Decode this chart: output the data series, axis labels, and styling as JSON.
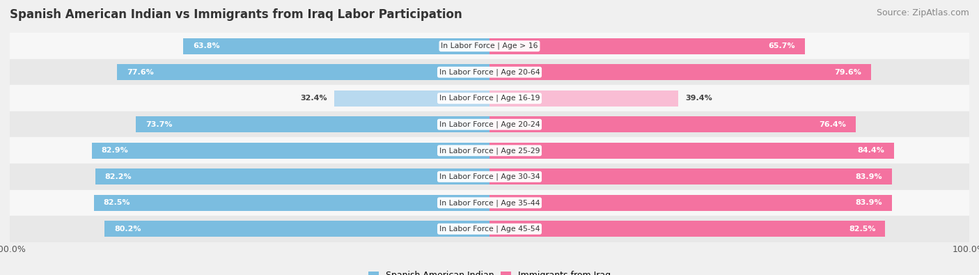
{
  "title": "Spanish American Indian vs Immigrants from Iraq Labor Participation",
  "source": "Source: ZipAtlas.com",
  "categories": [
    "In Labor Force | Age > 16",
    "In Labor Force | Age 20-64",
    "In Labor Force | Age 16-19",
    "In Labor Force | Age 20-24",
    "In Labor Force | Age 25-29",
    "In Labor Force | Age 30-34",
    "In Labor Force | Age 35-44",
    "In Labor Force | Age 45-54"
  ],
  "left_values": [
    63.8,
    77.6,
    32.4,
    73.7,
    82.9,
    82.2,
    82.5,
    80.2
  ],
  "right_values": [
    65.7,
    79.6,
    39.4,
    76.4,
    84.4,
    83.9,
    83.9,
    82.5
  ],
  "left_color": "#7bbde0",
  "right_color": "#f472a0",
  "left_color_light": "#b8d9ef",
  "right_color_light": "#f9bdd4",
  "bar_height": 0.62,
  "background_color": "#f0f0f0",
  "row_bg_light": "#f7f7f7",
  "row_bg_dark": "#e8e8e8",
  "legend_left_label": "Spanish American Indian",
  "legend_right_label": "Immigrants from Iraq",
  "title_fontsize": 12,
  "source_fontsize": 9,
  "label_fontsize": 8,
  "tick_fontsize": 9
}
